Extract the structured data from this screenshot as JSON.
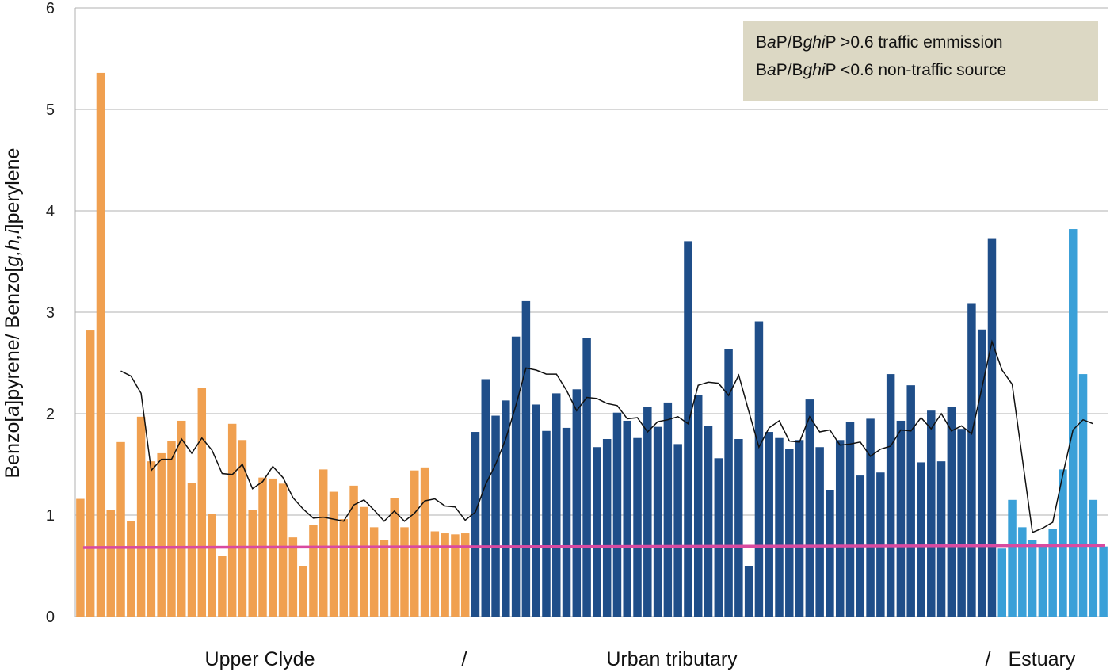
{
  "chart_data": {
    "type": "bar",
    "ylabel_parts": [
      {
        "t": "Benzo[",
        "i": false
      },
      {
        "t": "a",
        "i": true
      },
      {
        "t": "]pyrene/ Benzo[",
        "i": false
      },
      {
        "t": "g,h,i",
        "i": true
      },
      {
        "t": "]perylene",
        "i": false
      }
    ],
    "ylim": [
      0,
      6
    ],
    "yticks": [
      "0",
      "1",
      "2",
      "3",
      "4",
      "5",
      "6"
    ],
    "grid": true,
    "legend": {
      "placement": "top-right",
      "lines": [
        {
          "parts": [
            {
              "t": "B",
              "i": false
            },
            {
              "t": "a",
              "i": true
            },
            {
              "t": "P/B",
              "i": false
            },
            {
              "t": "ghi",
              "i": true
            },
            {
              "t": "P >0.6 traffic emmission",
              "i": false
            }
          ]
        },
        {
          "parts": [
            {
              "t": "B",
              "i": false
            },
            {
              "t": "a",
              "i": true
            },
            {
              "t": "P/B",
              "i": false
            },
            {
              "t": "ghi",
              "i": true
            },
            {
              "t": "P <0.6 non-traffic source",
              "i": false
            }
          ]
        }
      ]
    },
    "series": [
      {
        "group": "Upper Clyde",
        "color": "#f0a050",
        "values": [
          1.16,
          2.82,
          5.36,
          1.05,
          1.72,
          0.94,
          1.97,
          1.53,
          1.61,
          1.73,
          1.93,
          1.32,
          2.25,
          1.01,
          0.6,
          1.9,
          1.74,
          1.05,
          1.37,
          1.36,
          1.31,
          0.78,
          0.5,
          0.9,
          1.45,
          1.23,
          0.96,
          1.29,
          1.08,
          0.88,
          0.75,
          1.17,
          0.88,
          1.44,
          1.47,
          0.84,
          0.82,
          0.81,
          0.82
        ]
      },
      {
        "group": "Urban tributary",
        "color": "#1f4e89",
        "values": [
          1.82,
          2.34,
          1.98,
          2.13,
          2.76,
          3.11,
          2.09,
          1.83,
          2.2,
          1.86,
          2.24,
          2.75,
          1.67,
          1.75,
          2.01,
          1.93,
          1.76,
          2.07,
          1.87,
          2.11,
          1.7,
          3.7,
          2.18,
          1.88,
          1.56,
          2.64,
          1.75,
          0.5,
          2.91,
          1.82,
          1.76,
          1.65,
          1.74,
          2.14,
          1.67,
          1.25,
          1.74,
          1.92,
          1.39,
          1.95,
          1.42,
          2.39,
          1.93,
          2.28,
          1.52,
          2.03,
          1.53,
          2.07,
          1.85,
          3.09,
          2.83,
          3.73
        ]
      },
      {
        "group": "Estuary",
        "color": "#3aa0d8",
        "values": [
          0.67,
          1.15,
          0.88,
          0.75,
          0.7,
          0.86,
          1.45,
          3.82,
          2.39,
          1.15,
          0.69
        ]
      }
    ],
    "moving_average": {
      "color": "#111111",
      "values": [
        2.42,
        2.37,
        2.2,
        1.44,
        1.55,
        1.55,
        1.75,
        1.61,
        1.76,
        1.64,
        1.41,
        1.4,
        1.5,
        1.26,
        1.33,
        1.48,
        1.37,
        1.17,
        1.06,
        0.97,
        0.98,
        0.96,
        0.94,
        1.1,
        1.15,
        1.05,
        0.94,
        1.04,
        0.94,
        1.02,
        1.14,
        1.16,
        1.09,
        1.08,
        0.95,
        1.03,
        1.3,
        1.5,
        1.75,
        2.08,
        2.45,
        2.43,
        2.39,
        2.39,
        2.23,
        2.03,
        2.16,
        2.15,
        2.1,
        2.08,
        1.95,
        1.96,
        1.82,
        1.92,
        1.94,
        1.97,
        1.9,
        2.28,
        2.31,
        2.3,
        2.18,
        2.38,
        2.02,
        1.67,
        1.86,
        1.93,
        1.73,
        1.72,
        1.97,
        1.82,
        1.84,
        1.69,
        1.7,
        1.72,
        1.58,
        1.65,
        1.68,
        1.84,
        1.83,
        1.96,
        1.85,
        2.0,
        1.83,
        1.88,
        1.8,
        2.25,
        2.71,
        2.43,
        2.29,
        1.56,
        0.83,
        0.87,
        0.93,
        1.4,
        1.84,
        1.94,
        1.9
      ]
    },
    "threshold": {
      "color": "#d94aa0",
      "values": [
        0.68,
        0.7
      ]
    },
    "section_labels": [
      "Upper Clyde",
      "/",
      "Urban tributary",
      "/",
      "Estuary"
    ]
  }
}
